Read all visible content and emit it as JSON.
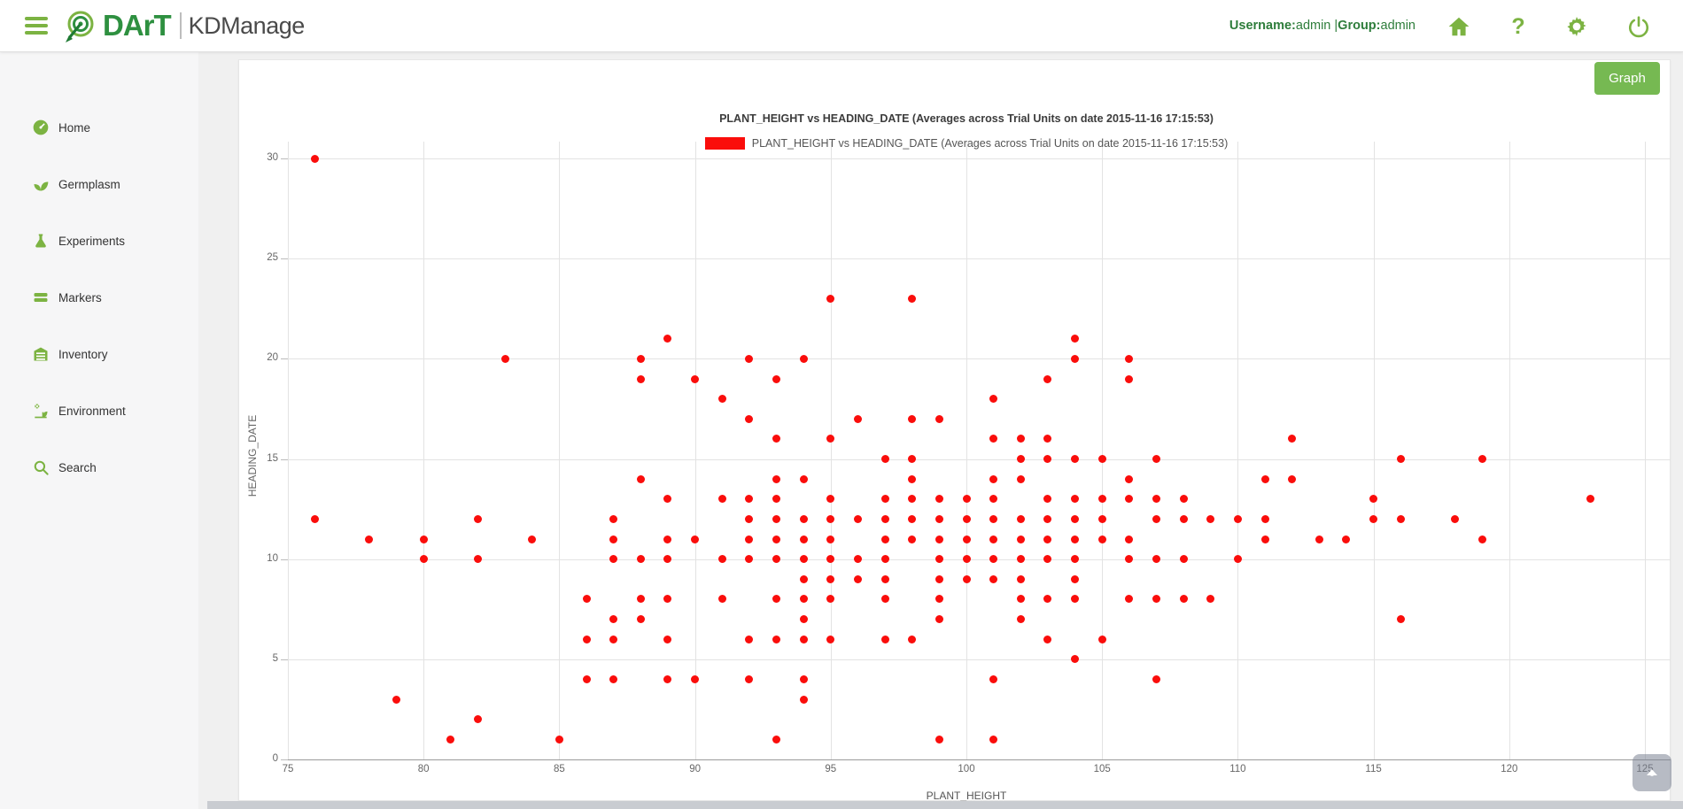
{
  "header": {
    "brand": {
      "dart": "DArT",
      "product": "KDManage"
    },
    "user_info": {
      "username_label": "Username:",
      "username": "admin",
      "separator": " |",
      "group_label": "Group:",
      "group": "admin"
    },
    "icons": [
      {
        "name": "home-icon"
      },
      {
        "name": "help-icon",
        "glyph": "?"
      },
      {
        "name": "settings-gear-icon"
      },
      {
        "name": "power-icon"
      }
    ],
    "menu_icon": "hamburger-icon",
    "logo_icon": "dart-target-logo"
  },
  "sidebar": {
    "items": [
      {
        "label": "Home",
        "icon": "dashboard-icon"
      },
      {
        "label": "Germplasm",
        "icon": "seedling-icon"
      },
      {
        "label": "Experiments",
        "icon": "flask-icon"
      },
      {
        "label": "Markers",
        "icon": "bars-icon"
      },
      {
        "label": "Inventory",
        "icon": "archive-icon"
      },
      {
        "label": "Environment",
        "icon": "plant-gear-icon"
      },
      {
        "label": "Search",
        "icon": "search-icon"
      }
    ]
  },
  "toolbar": {
    "graph_button_label": "Graph"
  },
  "scroll_top": {
    "icon": "chevron-up-icon"
  },
  "chart_data": {
    "type": "scatter",
    "title": "PLANT_HEIGHT vs HEADING_DATE (Averages across Trial Units on date 2015-11-16 17:15:53)",
    "legend": [
      {
        "label": "PLANT_HEIGHT vs HEADING_DATE (Averages across Trial Units on date 2015-11-16 17:15:53)",
        "color": "#fa0d0b"
      }
    ],
    "xlabel": "PLANT_HEIGHT",
    "ylabel": "HEADING_DATE",
    "xlim": [
      75,
      125.9
    ],
    "ylim": [
      0,
      30.9
    ],
    "x_ticks": [
      75,
      80,
      85,
      90,
      95,
      100,
      105,
      110,
      115,
      120,
      125
    ],
    "y_ticks": [
      0,
      5,
      10,
      15,
      20,
      25,
      30
    ],
    "grid": true,
    "point_color": "#fa0d0b",
    "points": [
      [
        76,
        30
      ],
      [
        76,
        12
      ],
      [
        78,
        11
      ],
      [
        79,
        3
      ],
      [
        80,
        11
      ],
      [
        80,
        10
      ],
      [
        81,
        1
      ],
      [
        82,
        12
      ],
      [
        82,
        10
      ],
      [
        82,
        2
      ],
      [
        83,
        20
      ],
      [
        84,
        11
      ],
      [
        85,
        1
      ],
      [
        86,
        8
      ],
      [
        86,
        6
      ],
      [
        86,
        4
      ],
      [
        87,
        12
      ],
      [
        87,
        11
      ],
      [
        87,
        10
      ],
      [
        87,
        7
      ],
      [
        87,
        6
      ],
      [
        87,
        4
      ],
      [
        88,
        20
      ],
      [
        88,
        19
      ],
      [
        88,
        14
      ],
      [
        88,
        10
      ],
      [
        88,
        8
      ],
      [
        88,
        7
      ],
      [
        89,
        21
      ],
      [
        89,
        13
      ],
      [
        89,
        11
      ],
      [
        89,
        10
      ],
      [
        89,
        8
      ],
      [
        89,
        6
      ],
      [
        89,
        4
      ],
      [
        90,
        19
      ],
      [
        90,
        11
      ],
      [
        90,
        4
      ],
      [
        91,
        18
      ],
      [
        91,
        13
      ],
      [
        91,
        10
      ],
      [
        91,
        8
      ],
      [
        92,
        20
      ],
      [
        92,
        17
      ],
      [
        92,
        13
      ],
      [
        92,
        12
      ],
      [
        92,
        11
      ],
      [
        92,
        10
      ],
      [
        92,
        6
      ],
      [
        92,
        4
      ],
      [
        93,
        19
      ],
      [
        93,
        16
      ],
      [
        93,
        14
      ],
      [
        93,
        13
      ],
      [
        93,
        12
      ],
      [
        93,
        11
      ],
      [
        93,
        10
      ],
      [
        93,
        8
      ],
      [
        93,
        6
      ],
      [
        93,
        1
      ],
      [
        94,
        20
      ],
      [
        94,
        14
      ],
      [
        94,
        12
      ],
      [
        94,
        11
      ],
      [
        94,
        10
      ],
      [
        94,
        9
      ],
      [
        94,
        8
      ],
      [
        94,
        7
      ],
      [
        94,
        6
      ],
      [
        94,
        4
      ],
      [
        94,
        3
      ],
      [
        95,
        23
      ],
      [
        95,
        16
      ],
      [
        95,
        13
      ],
      [
        95,
        12
      ],
      [
        95,
        11
      ],
      [
        95,
        10
      ],
      [
        95,
        9
      ],
      [
        95,
        8
      ],
      [
        95,
        6
      ],
      [
        96,
        17
      ],
      [
        96,
        12
      ],
      [
        96,
        10
      ],
      [
        96,
        9
      ],
      [
        97,
        15
      ],
      [
        97,
        13
      ],
      [
        97,
        12
      ],
      [
        97,
        11
      ],
      [
        97,
        10
      ],
      [
        97,
        9
      ],
      [
        97,
        8
      ],
      [
        97,
        6
      ],
      [
        98,
        23
      ],
      [
        98,
        17
      ],
      [
        98,
        15
      ],
      [
        98,
        14
      ],
      [
        98,
        13
      ],
      [
        98,
        12
      ],
      [
        98,
        11
      ],
      [
        98,
        6
      ],
      [
        99,
        17
      ],
      [
        99,
        13
      ],
      [
        99,
        12
      ],
      [
        99,
        11
      ],
      [
        99,
        10
      ],
      [
        99,
        9
      ],
      [
        99,
        8
      ],
      [
        99,
        7
      ],
      [
        99,
        1
      ],
      [
        100,
        13
      ],
      [
        100,
        12
      ],
      [
        100,
        11
      ],
      [
        100,
        10
      ],
      [
        100,
        9
      ],
      [
        101,
        18
      ],
      [
        101,
        16
      ],
      [
        101,
        14
      ],
      [
        101,
        13
      ],
      [
        101,
        12
      ],
      [
        101,
        11
      ],
      [
        101,
        10
      ],
      [
        101,
        9
      ],
      [
        101,
        4
      ],
      [
        101,
        1
      ],
      [
        102,
        16
      ],
      [
        102,
        15
      ],
      [
        102,
        14
      ],
      [
        102,
        12
      ],
      [
        102,
        11
      ],
      [
        102,
        10
      ],
      [
        102,
        9
      ],
      [
        102,
        8
      ],
      [
        102,
        7
      ],
      [
        103,
        19
      ],
      [
        103,
        16
      ],
      [
        103,
        15
      ],
      [
        103,
        13
      ],
      [
        103,
        12
      ],
      [
        103,
        11
      ],
      [
        103,
        10
      ],
      [
        103,
        8
      ],
      [
        103,
        6
      ],
      [
        104,
        21
      ],
      [
        104,
        20
      ],
      [
        104,
        15
      ],
      [
        104,
        13
      ],
      [
        104,
        12
      ],
      [
        104,
        11
      ],
      [
        104,
        10
      ],
      [
        104,
        9
      ],
      [
        104,
        8
      ],
      [
        104,
        5
      ],
      [
        105,
        15
      ],
      [
        105,
        13
      ],
      [
        105,
        12
      ],
      [
        105,
        11
      ],
      [
        105,
        6
      ],
      [
        106,
        20
      ],
      [
        106,
        19
      ],
      [
        106,
        14
      ],
      [
        106,
        13
      ],
      [
        106,
        11
      ],
      [
        106,
        10
      ],
      [
        106,
        8
      ],
      [
        107,
        15
      ],
      [
        107,
        13
      ],
      [
        107,
        12
      ],
      [
        107,
        10
      ],
      [
        107,
        8
      ],
      [
        107,
        4
      ],
      [
        108,
        13
      ],
      [
        108,
        12
      ],
      [
        108,
        10
      ],
      [
        108,
        8
      ],
      [
        109,
        12
      ],
      [
        109,
        8
      ],
      [
        110,
        12
      ],
      [
        110,
        10
      ],
      [
        111,
        14
      ],
      [
        111,
        12
      ],
      [
        111,
        11
      ],
      [
        112,
        16
      ],
      [
        112,
        14
      ],
      [
        113,
        11
      ],
      [
        114,
        11
      ],
      [
        115,
        13
      ],
      [
        115,
        12
      ],
      [
        116,
        15
      ],
      [
        116,
        12
      ],
      [
        116,
        7
      ],
      [
        118,
        12
      ],
      [
        119,
        15
      ],
      [
        119,
        11
      ],
      [
        123,
        13
      ]
    ]
  }
}
